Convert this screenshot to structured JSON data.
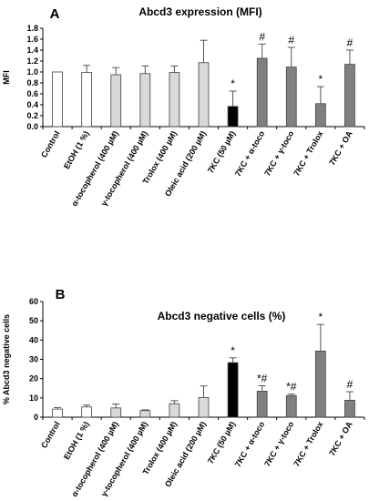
{
  "chart_data": [
    {
      "type": "bar",
      "panel_label": "A",
      "title": "Abcd3 expression (MFI)",
      "ylabel": "MFI",
      "ylim": [
        0,
        1.8
      ],
      "yticks": [
        "0.0",
        "0.2",
        "0.4",
        "0.6",
        "0.8",
        "1.0",
        "1.2",
        "1.4",
        "1.6",
        "1.8"
      ],
      "categories": [
        "Control",
        "EtOH (1 %)",
        "α-tocopherol (400 µM)",
        "γ-tocopherol (400 µM)",
        "Trolox (400 µM)",
        "Oleic acid (200 µM)",
        "7KC (50 µM)",
        "7KC + α-toco",
        "7KC + γ-toco",
        "7KC + Trolox",
        "7KC + OA"
      ],
      "values": [
        1.0,
        0.99,
        0.95,
        0.97,
        0.99,
        1.17,
        0.37,
        1.25,
        1.09,
        0.42,
        1.14
      ],
      "errors": [
        0.0,
        0.13,
        0.13,
        0.14,
        0.12,
        0.41,
        0.28,
        0.26,
        0.36,
        0.31,
        0.26
      ],
      "colors": [
        "#ffffff",
        "#ffffff",
        "#d9d9d9",
        "#d9d9d9",
        "#d9d9d9",
        "#d9d9d9",
        "#000000",
        "#808080",
        "#808080",
        "#808080",
        "#808080"
      ],
      "annotations": [
        "",
        "",
        "",
        "",
        "",
        "",
        "*",
        "#",
        "#",
        "*",
        "#"
      ]
    },
    {
      "type": "bar",
      "panel_label": "B",
      "title": "Abcd3 negative cells (%)",
      "ylabel": "% Abcd3 negative cells",
      "ylim": [
        0,
        60
      ],
      "yticks": [
        "0",
        "10",
        "20",
        "30",
        "40",
        "50",
        "60"
      ],
      "categories": [
        "Control",
        "EtOH (1 %)",
        "α-tocopherol (400 µM)",
        "γ-tocopherol (400 µM)",
        "Trolox (400 µM)",
        "Oleic acid (200 µM)",
        "7KC (50 µM)",
        "7KC + α-toco",
        "7KC + γ-toco",
        "7KC + Trolox",
        "7KC + OA"
      ],
      "values": [
        4.2,
        5.3,
        4.8,
        3.4,
        7.0,
        10.2,
        28.3,
        13.5,
        11.2,
        34.3,
        8.8
      ],
      "errors": [
        0.8,
        1.0,
        2.0,
        0.4,
        1.6,
        6.0,
        2.5,
        2.8,
        0.8,
        13.8,
        4.4
      ],
      "colors": [
        "#ffffff",
        "#ffffff",
        "#d9d9d9",
        "#d9d9d9",
        "#d9d9d9",
        "#d9d9d9",
        "#000000",
        "#808080",
        "#808080",
        "#808080",
        "#808080"
      ],
      "annotations": [
        "",
        "",
        "",
        "",
        "",
        "",
        "*",
        "*#",
        "*#",
        "*",
        "#"
      ]
    }
  ]
}
